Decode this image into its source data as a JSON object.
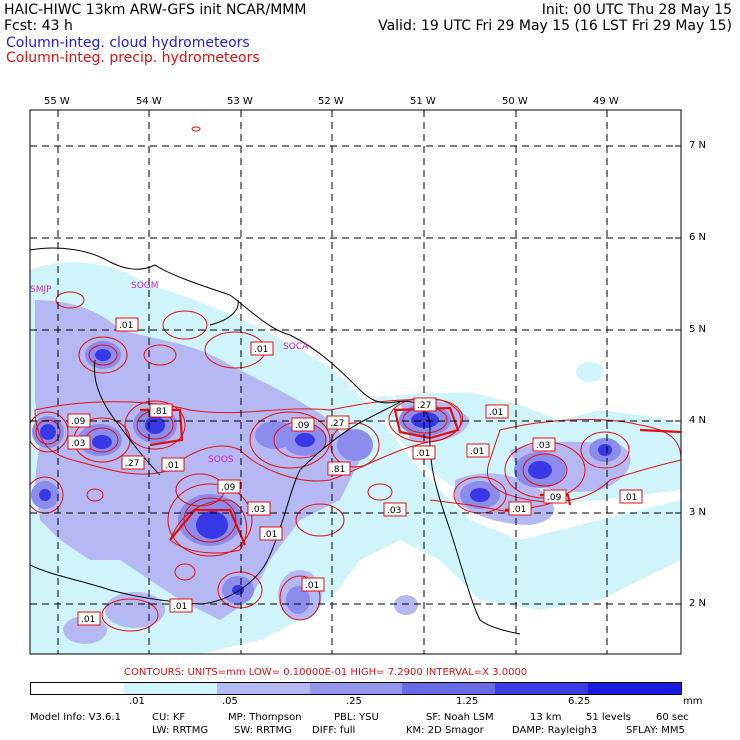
{
  "header": {
    "line1_left": "HAIC-HIWC 13km ARW-GFS init    NCAR/MMM",
    "line1_right": "Init: 00 UTC Thu 28 May 15",
    "line2_left": "Fcst:    43 h",
    "line2_right": "Valid: 19 UTC Fri 29 May 15 (16 LST Fri 29 May 15)",
    "legend_blue": "Column-integ. cloud hydrometeors",
    "legend_red": "Column-integ. precip. hydrometeors"
  },
  "map": {
    "lon_labels": [
      "55 W",
      "54 W",
      "53 W",
      "52 W",
      "51 W",
      "50 W",
      "49 W"
    ],
    "lat_labels": [
      "7 N",
      "6 N",
      "5 N",
      "4 N",
      "3 N",
      "2 N"
    ],
    "stations": [
      "SMJP",
      "SOGM",
      "SOCA",
      "SOOS"
    ],
    "contour_labels": [
      ".01",
      ".01",
      ".09",
      ".81",
      ".03",
      ".27",
      ".01",
      ".09",
      ".27",
      ".81",
      ".27",
      ".01",
      ".01",
      ".01",
      ".03",
      ".09",
      ".01",
      ".01",
      ".09",
      ".03",
      ".01",
      ".03",
      ".01",
      ".01",
      ".01"
    ],
    "colors": {
      "cloud_light": "#cff4fa",
      "cloud_mid": "#9fa0f0",
      "cloud_dark": "#6a6ae8",
      "cloud_core": "#2020e0",
      "precip": "#e01010",
      "coast": "#000000"
    }
  },
  "contours_line": {
    "text": "CONTOURS:  UNITS=mm   LOW= 0.10000E-01   HIGH=  7.2900     INTERVAL=X  3.0000"
  },
  "colorbar": {
    "labels": [
      ".01",
      ".05",
      ".25",
      "1.25",
      "6.25"
    ],
    "unit": "mm",
    "colors": [
      "#ffffff",
      "#cff4fa",
      "#b6b8f4",
      "#9596ee",
      "#6a6ae8",
      "#3c3ce4",
      "#1a1ae0"
    ]
  },
  "footer": {
    "line1": [
      "Model Info: V3.6.1",
      "CU: KF",
      "MP: Thompson",
      "PBL: YSU",
      "SF: Noah LSM",
      "13 km",
      "51 levels",
      "60 sec"
    ],
    "line2": [
      "LW: RRTMG",
      "SW: RRTMG",
      "DIFF: full",
      "KM: 2D Smagor",
      "DAMP: Rayleigh3",
      "SFLAY: MM5"
    ]
  }
}
